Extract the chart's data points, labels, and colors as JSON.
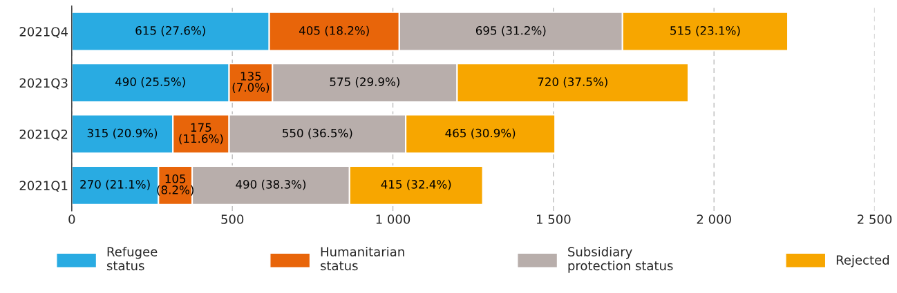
{
  "chart_data": {
    "type": "bar",
    "orientation": "horizontal",
    "stacked": true,
    "categories": [
      "2021Q4",
      "2021Q3",
      "2021Q2",
      "2021Q1"
    ],
    "series": [
      {
        "name": "Refugee\nstatus",
        "color": "#29abe2",
        "values": [
          615,
          490,
          315,
          270
        ],
        "value_labels": [
          "615 (27.6%)",
          "490 (25.5%)",
          "315 (20.9%)",
          "270 (21.1%)"
        ]
      },
      {
        "name": "Humanitarian\nstatus",
        "color": "#e8650a",
        "values": [
          405,
          135,
          175,
          105
        ],
        "value_labels": [
          "405 (18.2%)",
          "135\n(7.0%)",
          "175\n(11.6%)",
          "105\n(8.2%)"
        ]
      },
      {
        "name": "Subsidiary\nprotection status",
        "color": "#b8aeab",
        "values": [
          695,
          575,
          550,
          490
        ],
        "value_labels": [
          "695 (31.2%)",
          "575 (29.9%)",
          "550 (36.5%)",
          "490 (38.3%)"
        ]
      },
      {
        "name": "Rejected",
        "color": "#f7a600",
        "values": [
          515,
          720,
          465,
          415
        ],
        "value_labels": [
          "515 (23.1%)",
          "720 (37.5%)",
          "465 (30.9%)",
          "415 (32.4%)"
        ]
      }
    ],
    "xlim": [
      0,
      2500
    ],
    "xticks": [
      0,
      500,
      {
        "value": 1000,
        "label": "1 000"
      },
      {
        "value": 1500,
        "label": "1 500"
      },
      {
        "value": 2000,
        "label": "2 000"
      },
      {
        "value": 2500,
        "label": "2 500"
      }
    ],
    "grid": "x",
    "legend": "bottom"
  }
}
